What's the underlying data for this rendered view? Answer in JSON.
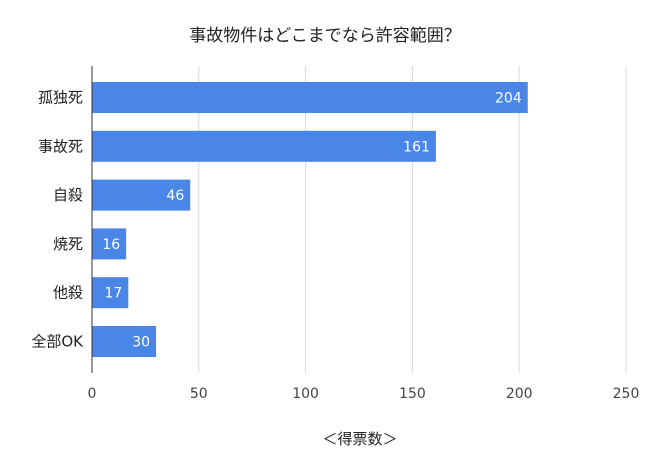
{
  "chart_data": {
    "type": "bar",
    "orientation": "horizontal",
    "title": "事故物件はどこまでなら許容範囲？",
    "xlabel": "＜得票数＞",
    "ylabel": "",
    "categories": [
      "孤独死",
      "事故死",
      "自殺",
      "焼死",
      "他殺",
      "全部OK"
    ],
    "values": [
      204,
      161,
      46,
      16,
      17,
      30
    ],
    "xlim": [
      0,
      250
    ],
    "xticks": [
      0,
      50,
      100,
      150,
      200,
      250
    ],
    "grid": true,
    "legend": "none",
    "bar_color": "#4a86e8",
    "data_labels": true
  }
}
